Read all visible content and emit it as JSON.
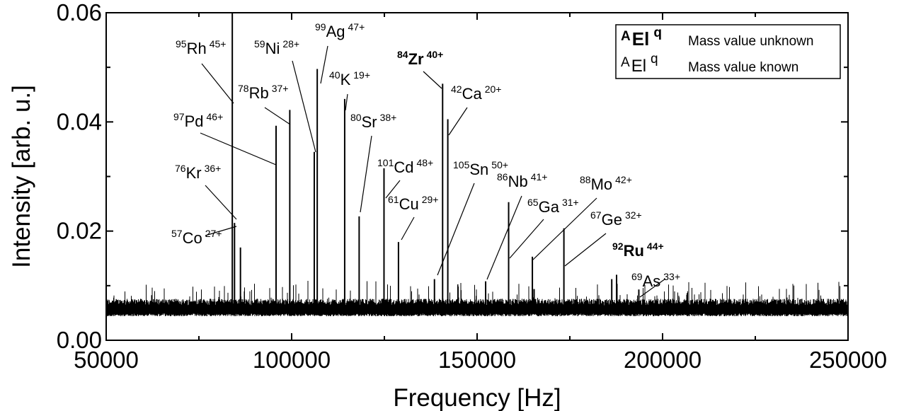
{
  "chart_data": {
    "type": "line",
    "title": "",
    "xlabel": "Frequency [Hz]",
    "ylabel": "Intensity [arb. u.]",
    "xlim": [
      50000,
      250000
    ],
    "ylim": [
      0.0,
      0.06
    ],
    "x_ticks": [
      50000,
      100000,
      150000,
      200000,
      250000
    ],
    "x_tick_labels": [
      "50000",
      "100000",
      "150000",
      "200000",
      "250000"
    ],
    "y_ticks": [
      0.0,
      0.02,
      0.04,
      0.06
    ],
    "y_tick_labels": [
      "0.00",
      "0.02",
      "0.04",
      "0.06"
    ],
    "grid": false,
    "line_color": "#000000",
    "noise_baseline": 0.0058,
    "legend": {
      "placement": "top-right",
      "entries": [
        {
          "mass": "A",
          "element": "El",
          "charge": "q",
          "bold": true,
          "text": "Mass value unknown"
        },
        {
          "mass": "A",
          "element": "El",
          "charge": "q",
          "bold": false,
          "text": "Mass value known"
        }
      ]
    },
    "peaks": [
      {
        "x": 84000,
        "y": 0.06
      },
      {
        "x": 84600,
        "y": 0.0215
      },
      {
        "x": 86200,
        "y": 0.017
      },
      {
        "x": 95800,
        "y": 0.0393
      },
      {
        "x": 99500,
        "y": 0.0422
      },
      {
        "x": 106100,
        "y": 0.0345
      },
      {
        "x": 106900,
        "y": 0.0497
      },
      {
        "x": 114300,
        "y": 0.0442
      },
      {
        "x": 118200,
        "y": 0.0227
      },
      {
        "x": 124900,
        "y": 0.0315
      },
      {
        "x": 128800,
        "y": 0.018
      },
      {
        "x": 138500,
        "y": 0.0112
      },
      {
        "x": 140700,
        "y": 0.047
      },
      {
        "x": 142100,
        "y": 0.0405
      },
      {
        "x": 152300,
        "y": 0.0108
      },
      {
        "x": 158500,
        "y": 0.0253
      },
      {
        "x": 164900,
        "y": 0.0153
      },
      {
        "x": 173400,
        "y": 0.0205
      },
      {
        "x": 186300,
        "y": 0.0112
      },
      {
        "x": 187600,
        "y": 0.012
      },
      {
        "x": 193600,
        "y": 0.0093
      }
    ],
    "annotations": [
      {
        "mass": "95",
        "element": "Rh",
        "charge": "45+",
        "bold": false,
        "peak_x": 84000
      },
      {
        "mass": "59",
        "element": "Ni",
        "charge": "28+",
        "bold": false,
        "peak_x": 106100
      },
      {
        "mass": "99",
        "element": "Ag",
        "charge": "47+",
        "bold": false,
        "peak_x": 106900
      },
      {
        "mass": "78",
        "element": "Rb",
        "charge": "37+",
        "bold": false,
        "peak_x": 99500
      },
      {
        "mass": "40",
        "element": "K",
        "charge": "19+",
        "bold": false,
        "peak_x": 114300
      },
      {
        "mass": "84",
        "element": "Zr",
        "charge": "40+",
        "bold": true,
        "peak_x": 140700
      },
      {
        "mass": "42",
        "element": "Ca",
        "charge": "20+",
        "bold": false,
        "peak_x": 142100
      },
      {
        "mass": "97",
        "element": "Pd",
        "charge": "46+",
        "bold": false,
        "peak_x": 95800
      },
      {
        "mass": "80",
        "element": "Sr",
        "charge": "38+",
        "bold": false,
        "peak_x": 118200
      },
      {
        "mass": "101",
        "element": "Cd",
        "charge": "48+",
        "bold": false,
        "peak_x": 124900
      },
      {
        "mass": "61",
        "element": "Cu",
        "charge": "29+",
        "bold": false,
        "peak_x": 128800
      },
      {
        "mass": "105",
        "element": "Sn",
        "charge": "50+",
        "bold": false,
        "peak_x": 138500
      },
      {
        "mass": "86",
        "element": "Nb",
        "charge": "41+",
        "bold": false,
        "peak_x": 152300
      },
      {
        "mass": "65",
        "element": "Ga",
        "charge": "31+",
        "bold": false,
        "peak_x": 158500
      },
      {
        "mass": "88",
        "element": "Mo",
        "charge": "42+",
        "bold": false,
        "peak_x": 164900
      },
      {
        "mass": "67",
        "element": "Ge",
        "charge": "32+",
        "bold": false,
        "peak_x": 173400
      },
      {
        "mass": "92",
        "element": "Ru",
        "charge": "44+",
        "bold": true,
        "peak_x": 187600
      },
      {
        "mass": "69",
        "element": "As",
        "charge": "33+",
        "bold": false,
        "peak_x": 193600
      },
      {
        "mass": "76",
        "element": "Kr",
        "charge": "36+",
        "bold": false,
        "peak_x": 84600
      },
      {
        "mass": "57",
        "element": "Co",
        "charge": "27+",
        "bold": false,
        "peak_x": 86200
      }
    ]
  }
}
